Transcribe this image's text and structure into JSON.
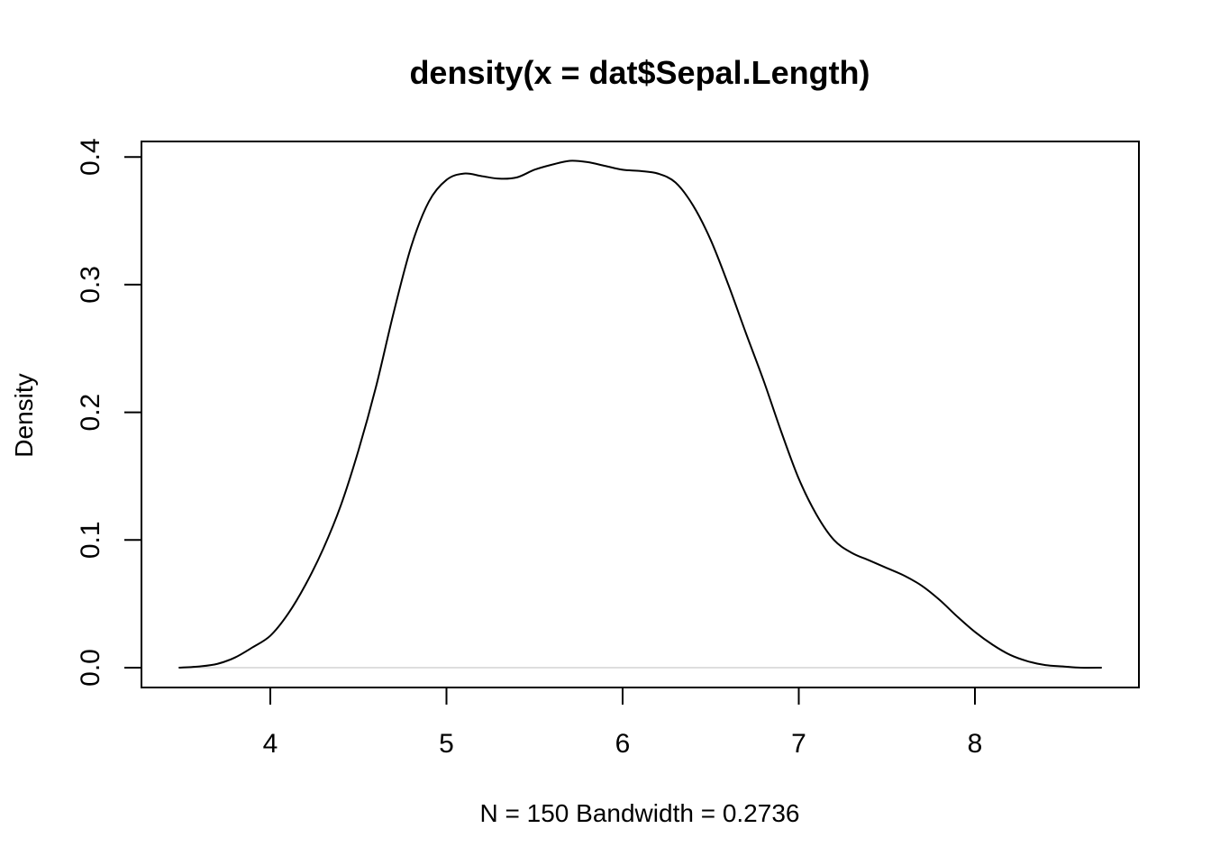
{
  "chart_data": {
    "type": "line",
    "title": "density(x = dat$Sepal.Length)",
    "xlabel": "N = 150   Bandwidth = 0.2736",
    "ylabel": "Density",
    "xlim": [
      3.48,
      8.72
    ],
    "ylim": [
      0.0,
      0.4
    ],
    "x_ticks": [
      "4",
      "5",
      "6",
      "7",
      "8"
    ],
    "y_ticks": [
      "0.0",
      "0.1",
      "0.2",
      "0.3",
      "0.4"
    ],
    "grid": false,
    "baseline_y": 0.0,
    "colors": {
      "line": "#000000",
      "baseline": "#d3d3d3",
      "frame": "#000000"
    },
    "series": [
      {
        "x": [
          3.48,
          3.6,
          3.7,
          3.8,
          3.9,
          4.0,
          4.1,
          4.2,
          4.3,
          4.4,
          4.5,
          4.6,
          4.7,
          4.8,
          4.9,
          5.0,
          5.1,
          5.2,
          5.3,
          5.4,
          5.5,
          5.6,
          5.7,
          5.8,
          5.9,
          6.0,
          6.1,
          6.2,
          6.3,
          6.4,
          6.5,
          6.6,
          6.7,
          6.8,
          6.9,
          7.0,
          7.1,
          7.2,
          7.3,
          7.4,
          7.5,
          7.6,
          7.7,
          7.8,
          7.9,
          8.0,
          8.1,
          8.2,
          8.3,
          8.4,
          8.5,
          8.6,
          8.72
        ],
        "y": [
          0.0,
          0.001,
          0.003,
          0.008,
          0.016,
          0.025,
          0.042,
          0.065,
          0.093,
          0.127,
          0.17,
          0.22,
          0.278,
          0.33,
          0.365,
          0.382,
          0.387,
          0.385,
          0.383,
          0.384,
          0.39,
          0.394,
          0.397,
          0.396,
          0.393,
          0.39,
          0.389,
          0.387,
          0.38,
          0.362,
          0.335,
          0.3,
          0.262,
          0.225,
          0.185,
          0.148,
          0.12,
          0.1,
          0.09,
          0.084,
          0.078,
          0.072,
          0.064,
          0.053,
          0.04,
          0.028,
          0.018,
          0.01,
          0.005,
          0.002,
          0.001,
          0.0,
          0.0
        ]
      }
    ]
  }
}
